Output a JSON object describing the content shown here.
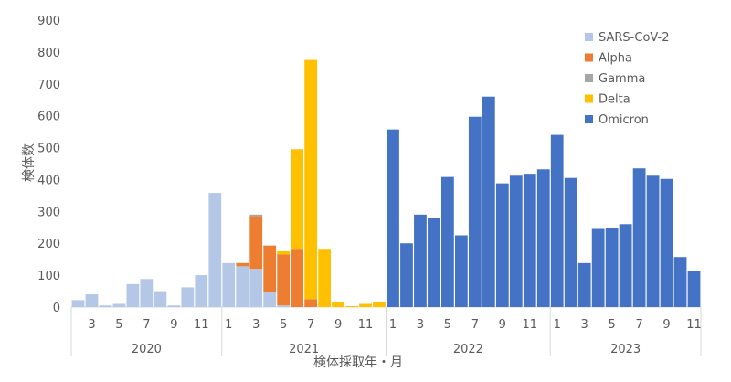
{
  "chart_data": {
    "type": "bar",
    "stacked": true,
    "ylabel": "検体数",
    "xlabel": "検体採取年・月",
    "ylim": [
      0,
      900
    ],
    "yticks": [
      0,
      100,
      200,
      300,
      400,
      500,
      600,
      700,
      800,
      900
    ],
    "grid": false,
    "legend_position": "top-right",
    "months": [
      2,
      3,
      4,
      5,
      6,
      7,
      8,
      9,
      10,
      11,
      12,
      1,
      2,
      3,
      4,
      5,
      6,
      7,
      8,
      9,
      10,
      11,
      12,
      1,
      2,
      3,
      4,
      5,
      6,
      7,
      8,
      9,
      10,
      11,
      12,
      1,
      2,
      3,
      4,
      5,
      6,
      7,
      8,
      9,
      10,
      11
    ],
    "month_tick_labels": [
      "",
      "3",
      "",
      "5",
      "",
      "7",
      "",
      "9",
      "",
      "11",
      "",
      "1",
      "",
      "3",
      "",
      "5",
      "",
      "7",
      "",
      "9",
      "",
      "11",
      "",
      "1",
      "",
      "3",
      "",
      "5",
      "",
      "7",
      "",
      "9",
      "",
      "11",
      "",
      "1",
      "",
      "3",
      "",
      "5",
      "",
      "7",
      "",
      "9",
      "",
      "11"
    ],
    "years": [
      {
        "label": "2020",
        "start": 0,
        "count": 11
      },
      {
        "label": "2021",
        "start": 11,
        "count": 12
      },
      {
        "label": "2022",
        "start": 23,
        "count": 12
      },
      {
        "label": "2023",
        "start": 35,
        "count": 11
      }
    ],
    "series": [
      {
        "name": "SARS-CoV-2",
        "color": "#b4c7e7",
        "values": [
          22,
          40,
          5,
          10,
          72,
          88,
          50,
          5,
          62,
          100,
          358,
          138,
          128,
          120,
          48,
          5,
          0,
          0,
          0,
          0,
          0,
          0,
          0,
          0,
          0,
          0,
          0,
          0,
          0,
          0,
          0,
          0,
          0,
          0,
          0,
          0,
          0,
          0,
          0,
          0,
          0,
          0,
          0,
          0,
          0,
          0
        ]
      },
      {
        "name": "Alpha",
        "color": "#ed7d31",
        "values": [
          0,
          0,
          0,
          0,
          0,
          0,
          0,
          0,
          0,
          0,
          0,
          0,
          10,
          165,
          145,
          160,
          180,
          25,
          0,
          0,
          0,
          0,
          0,
          0,
          0,
          0,
          0,
          0,
          0,
          0,
          0,
          0,
          0,
          0,
          0,
          0,
          0,
          0,
          0,
          0,
          0,
          0,
          0,
          0,
          0,
          0
        ]
      },
      {
        "name": "Gamma",
        "color": "#a5a5a5",
        "values": [
          0,
          0,
          0,
          0,
          0,
          0,
          0,
          0,
          0,
          0,
          0,
          0,
          0,
          5,
          0,
          0,
          0,
          0,
          0,
          0,
          0,
          0,
          0,
          0,
          0,
          0,
          0,
          0,
          0,
          0,
          0,
          0,
          0,
          0,
          0,
          0,
          0,
          0,
          0,
          0,
          0,
          0,
          0,
          0,
          0,
          0
        ]
      },
      {
        "name": "Delta",
        "color": "#ffc000",
        "values": [
          0,
          0,
          0,
          0,
          0,
          0,
          0,
          0,
          0,
          0,
          0,
          0,
          0,
          0,
          0,
          10,
          315,
          750,
          180,
          15,
          3,
          10,
          15,
          0,
          0,
          0,
          0,
          0,
          0,
          0,
          0,
          0,
          0,
          0,
          0,
          0,
          0,
          0,
          0,
          0,
          0,
          0,
          0,
          0,
          0,
          0
        ]
      },
      {
        "name": "Omicron",
        "color": "#4472c4",
        "values": [
          0,
          0,
          0,
          0,
          0,
          0,
          0,
          0,
          0,
          0,
          0,
          0,
          0,
          0,
          0,
          0,
          0,
          0,
          0,
          0,
          0,
          0,
          0,
          557,
          200,
          290,
          278,
          408,
          225,
          597,
          660,
          388,
          412,
          418,
          432,
          540,
          405,
          138,
          245,
          247,
          260,
          435,
          412,
          402,
          157,
          113
        ]
      }
    ]
  }
}
